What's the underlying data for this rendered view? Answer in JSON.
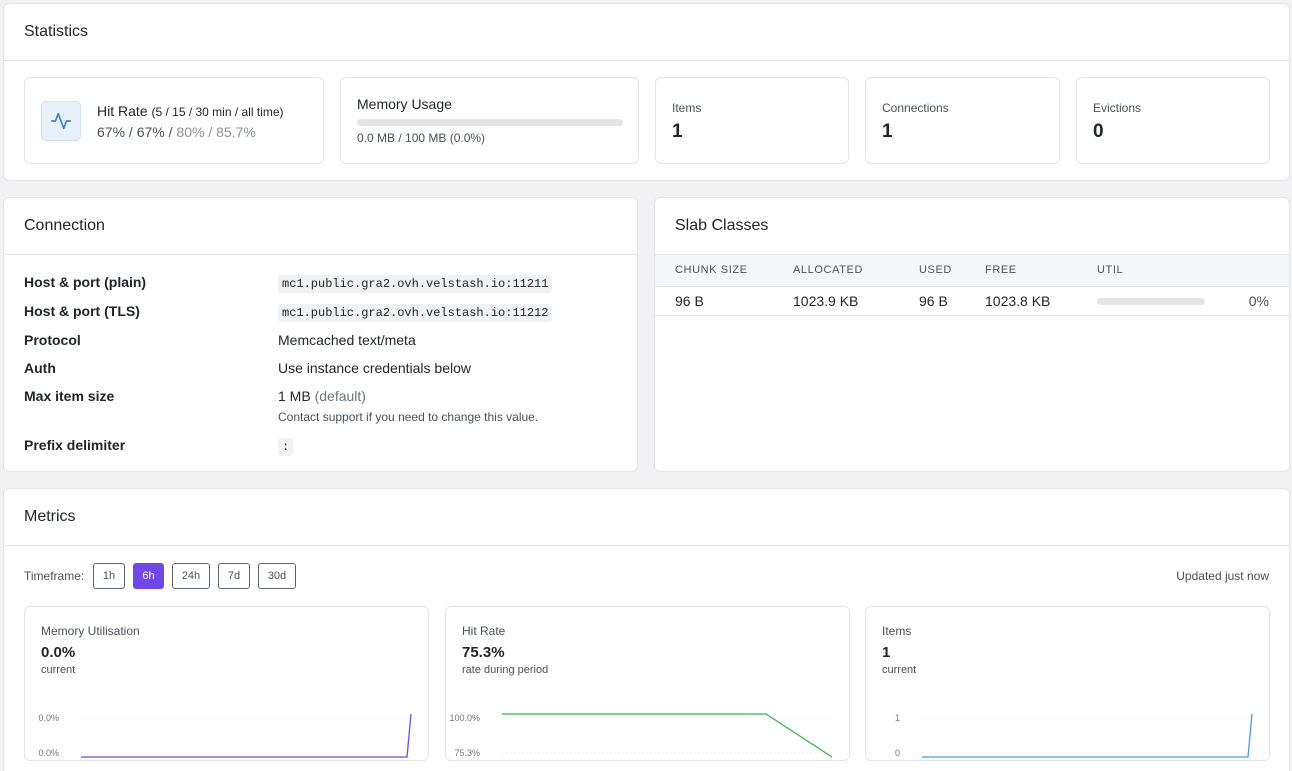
{
  "statistics": {
    "title": "Statistics",
    "hit_rate": {
      "title": "Hit Rate",
      "subtitle": "(5 / 15 / 30 min / all time)",
      "v5": "67%",
      "v15": "67%",
      "v30": "80%",
      "vall": "85.7%",
      "sep": " / "
    },
    "memory": {
      "title": "Memory Usage",
      "summary": "0.0 MB / 100 MB (0.0%)",
      "fraction": 0.0
    },
    "items": {
      "label": "Items",
      "value": "1"
    },
    "connections": {
      "label": "Connections",
      "value": "1"
    },
    "evictions": {
      "label": "Evictions",
      "value": "0"
    }
  },
  "connection": {
    "title": "Connection",
    "rows": [
      {
        "key": "Host & port (plain)",
        "value": "mc1.public.gra2.ovh.velstash.io:11211"
      },
      {
        "key": "Host & port (TLS)",
        "value": "mc1.public.gra2.ovh.velstash.io:11212"
      },
      {
        "key": "Protocol",
        "value": "Memcached text/meta"
      },
      {
        "key": "Auth",
        "value": "Use instance credentials below"
      },
      {
        "key": "Max item size",
        "value": "1 MB",
        "note": "(default)",
        "help": "Contact support if you need to change this value."
      },
      {
        "key": "Prefix delimiter",
        "value": ":"
      }
    ]
  },
  "slab": {
    "title": "Slab Classes",
    "columns": [
      "CHUNK SIZE",
      "ALLOCATED",
      "USED",
      "FREE",
      "UTIL"
    ],
    "rows": [
      {
        "chunk": "96 B",
        "allocated": "1023.9 KB",
        "used": "96 B",
        "free": "1023.8 KB",
        "util": "0%",
        "util_fraction": 0.0
      }
    ]
  },
  "metrics": {
    "title": "Metrics",
    "timeframe_label": "Timeframe:",
    "timeframes": [
      "1h",
      "6h",
      "24h",
      "7d",
      "30d"
    ],
    "active_timeframe": "6h",
    "updated": "Updated just now",
    "cards": [
      {
        "title": "Memory Utilisation",
        "value": "0.0%",
        "sub": "current",
        "color": "#7048e8",
        "ticks": [
          "0.0%",
          "0.0%"
        ]
      },
      {
        "title": "Hit Rate",
        "value": "75.3%",
        "sub": "rate during period",
        "color": "#37b24d",
        "ticks": [
          "100.0%",
          "75.3%"
        ]
      },
      {
        "title": "Items",
        "value": "1",
        "sub": "current",
        "color": "#4c9bd9",
        "ticks": [
          "1",
          "0"
        ]
      }
    ]
  },
  "chart_data": [
    {
      "type": "line",
      "title": "Memory Utilisation",
      "y_ticks": [
        "0.0%",
        "0.0%"
      ],
      "series": [
        {
          "values": [
            0,
            0,
            0,
            0,
            0,
            0,
            0.0001
          ]
        }
      ]
    },
    {
      "type": "line",
      "title": "Hit Rate",
      "y_ticks": [
        "100.0%",
        "75.3%"
      ],
      "ylim": [
        75.3,
        100
      ],
      "series": [
        {
          "values": [
            100,
            100,
            100,
            100,
            100,
            75.3
          ]
        }
      ]
    },
    {
      "type": "line",
      "title": "Items",
      "y_ticks": [
        "1",
        "0"
      ],
      "ylim": [
        0,
        1
      ],
      "series": [
        {
          "values": [
            0,
            0,
            0,
            0,
            0,
            0,
            1
          ]
        }
      ]
    }
  ]
}
